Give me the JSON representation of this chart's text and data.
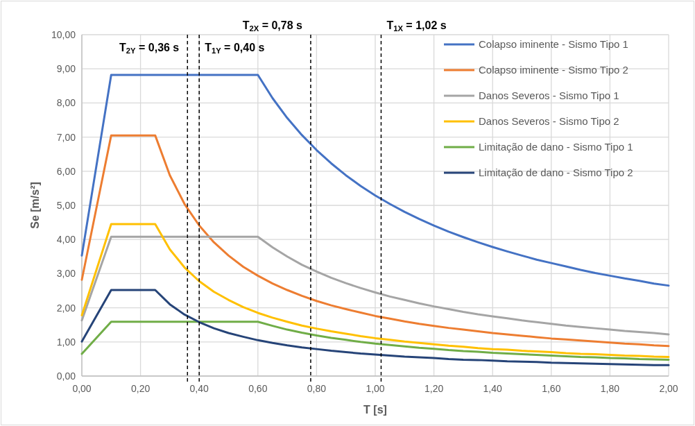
{
  "chart_data": {
    "type": "line",
    "xlabel": "T [s]",
    "ylabel": "Se [m/s²]",
    "x": [
      0,
      0.1,
      0.15,
      0.2,
      0.25,
      0.3,
      0.35,
      0.4,
      0.45,
      0.5,
      0.55,
      0.6,
      0.65,
      0.7,
      0.75,
      0.8,
      0.85,
      0.9,
      0.95,
      1.0,
      1.05,
      1.1,
      1.15,
      1.2,
      1.25,
      1.3,
      1.35,
      1.4,
      1.45,
      1.5,
      1.55,
      1.6,
      1.65,
      1.7,
      1.75,
      1.8,
      1.85,
      1.9,
      1.95,
      2.0
    ],
    "series": [
      {
        "name": "Colapso iminente - Sismo Tipo 1",
        "color": "#4472c4",
        "values": [
          3.53,
          8.82,
          8.82,
          8.82,
          8.82,
          8.82,
          8.82,
          8.82,
          8.82,
          8.82,
          8.82,
          8.82,
          8.14,
          7.56,
          7.06,
          6.62,
          6.23,
          5.88,
          5.57,
          5.29,
          5.04,
          4.81,
          4.6,
          4.41,
          4.23,
          4.07,
          3.92,
          3.78,
          3.65,
          3.53,
          3.41,
          3.31,
          3.21,
          3.11,
          3.02,
          2.94,
          2.86,
          2.79,
          2.71,
          2.65
        ]
      },
      {
        "name": "Colapso iminente - Sismo Tipo 2",
        "color": "#ed7d31",
        "values": [
          2.82,
          7.05,
          7.05,
          7.05,
          7.05,
          5.88,
          5.04,
          4.41,
          3.92,
          3.53,
          3.2,
          2.94,
          2.71,
          2.52,
          2.35,
          2.2,
          2.07,
          1.96,
          1.86,
          1.76,
          1.68,
          1.6,
          1.53,
          1.47,
          1.41,
          1.36,
          1.31,
          1.26,
          1.22,
          1.18,
          1.14,
          1.1,
          1.07,
          1.04,
          1.01,
          0.98,
          0.95,
          0.93,
          0.9,
          0.88
        ]
      },
      {
        "name": "Danos Severos - Sismo Tipo 1",
        "color": "#a5a5a5",
        "values": [
          1.63,
          4.08,
          4.08,
          4.08,
          4.08,
          4.08,
          4.08,
          4.08,
          4.08,
          4.08,
          4.08,
          4.08,
          3.77,
          3.5,
          3.26,
          3.06,
          2.88,
          2.72,
          2.58,
          2.45,
          2.33,
          2.23,
          2.13,
          2.04,
          1.96,
          1.88,
          1.81,
          1.75,
          1.69,
          1.63,
          1.58,
          1.53,
          1.48,
          1.44,
          1.4,
          1.36,
          1.32,
          1.29,
          1.26,
          1.22
        ]
      },
      {
        "name": "Danos Severos - Sismo Tipo 2",
        "color": "#ffc000",
        "values": [
          1.78,
          4.45,
          4.45,
          4.45,
          4.45,
          3.71,
          3.18,
          2.78,
          2.47,
          2.23,
          2.02,
          1.85,
          1.71,
          1.59,
          1.48,
          1.39,
          1.31,
          1.24,
          1.17,
          1.11,
          1.06,
          1.01,
          0.97,
          0.93,
          0.89,
          0.86,
          0.82,
          0.79,
          0.77,
          0.74,
          0.72,
          0.7,
          0.67,
          0.65,
          0.64,
          0.62,
          0.6,
          0.59,
          0.57,
          0.56
        ]
      },
      {
        "name": "Limitação de dano - Sismo Tipo 1",
        "color": "#70ad47",
        "values": [
          0.65,
          1.59,
          1.59,
          1.59,
          1.59,
          1.59,
          1.59,
          1.59,
          1.59,
          1.59,
          1.59,
          1.59,
          1.47,
          1.36,
          1.27,
          1.19,
          1.12,
          1.06,
          1.0,
          0.95,
          0.91,
          0.87,
          0.83,
          0.8,
          0.76,
          0.73,
          0.71,
          0.68,
          0.66,
          0.64,
          0.62,
          0.6,
          0.58,
          0.56,
          0.55,
          0.53,
          0.52,
          0.5,
          0.49,
          0.48
        ]
      },
      {
        "name": "Limitação de dano - Sismo Tipo 2",
        "color": "#264478",
        "values": [
          1.01,
          2.52,
          2.52,
          2.52,
          2.52,
          2.1,
          1.8,
          1.58,
          1.4,
          1.26,
          1.15,
          1.05,
          0.97,
          0.9,
          0.84,
          0.79,
          0.74,
          0.7,
          0.66,
          0.63,
          0.6,
          0.57,
          0.55,
          0.53,
          0.5,
          0.48,
          0.47,
          0.45,
          0.43,
          0.42,
          0.41,
          0.39,
          0.38,
          0.37,
          0.36,
          0.35,
          0.34,
          0.33,
          0.32,
          0.32
        ]
      }
    ],
    "xlim": [
      0,
      2
    ],
    "xticks": [
      {
        "value": 0,
        "label": "0,00"
      },
      {
        "value": 0.2,
        "label": "0,20"
      },
      {
        "value": 0.4,
        "label": "0,40"
      },
      {
        "value": 0.6,
        "label": "0,60"
      },
      {
        "value": 0.8,
        "label": "0,80"
      },
      {
        "value": 1.0,
        "label": "1,00"
      },
      {
        "value": 1.2,
        "label": "1,20"
      },
      {
        "value": 1.4,
        "label": "1,40"
      },
      {
        "value": 1.6,
        "label": "1,60"
      },
      {
        "value": 1.8,
        "label": "1,80"
      },
      {
        "value": 2.0,
        "label": "2,00"
      }
    ],
    "ylim": [
      0,
      10
    ],
    "yticks": [
      {
        "value": 0,
        "label": "0,00"
      },
      {
        "value": 1,
        "label": "1,00"
      },
      {
        "value": 2,
        "label": "2,00"
      },
      {
        "value": 3,
        "label": "3,00"
      },
      {
        "value": 4,
        "label": "4,00"
      },
      {
        "value": 5,
        "label": "5,00"
      },
      {
        "value": 6,
        "label": "6,00"
      },
      {
        "value": 7,
        "label": "7,00"
      },
      {
        "value": 8,
        "label": "8,00"
      },
      {
        "value": 9,
        "label": "9,00"
      },
      {
        "value": 10,
        "label": "10,00"
      }
    ],
    "ref_lines": [
      {
        "axis": "x",
        "value": 0.36,
        "label": "T$_{2Y}$ = 0,36 s",
        "color": "#000000",
        "line_style": "dashed"
      },
      {
        "axis": "x",
        "value": 0.4,
        "label": "T$_{1Y}$ = 0,40 s",
        "color": "#000000",
        "line_style": "dashed"
      },
      {
        "axis": "x",
        "value": 0.78,
        "label": "T$_{2X}$ = 0,78 s",
        "color": "#000000",
        "line_style": "dashed"
      },
      {
        "axis": "x",
        "value": 1.02,
        "label": "T$_{1X}$ = 1,02 s",
        "color": "#000000",
        "line_style": "dashed"
      }
    ],
    "grid": true,
    "legend": "top right",
    "marker": "none",
    "line_style": "solid"
  }
}
